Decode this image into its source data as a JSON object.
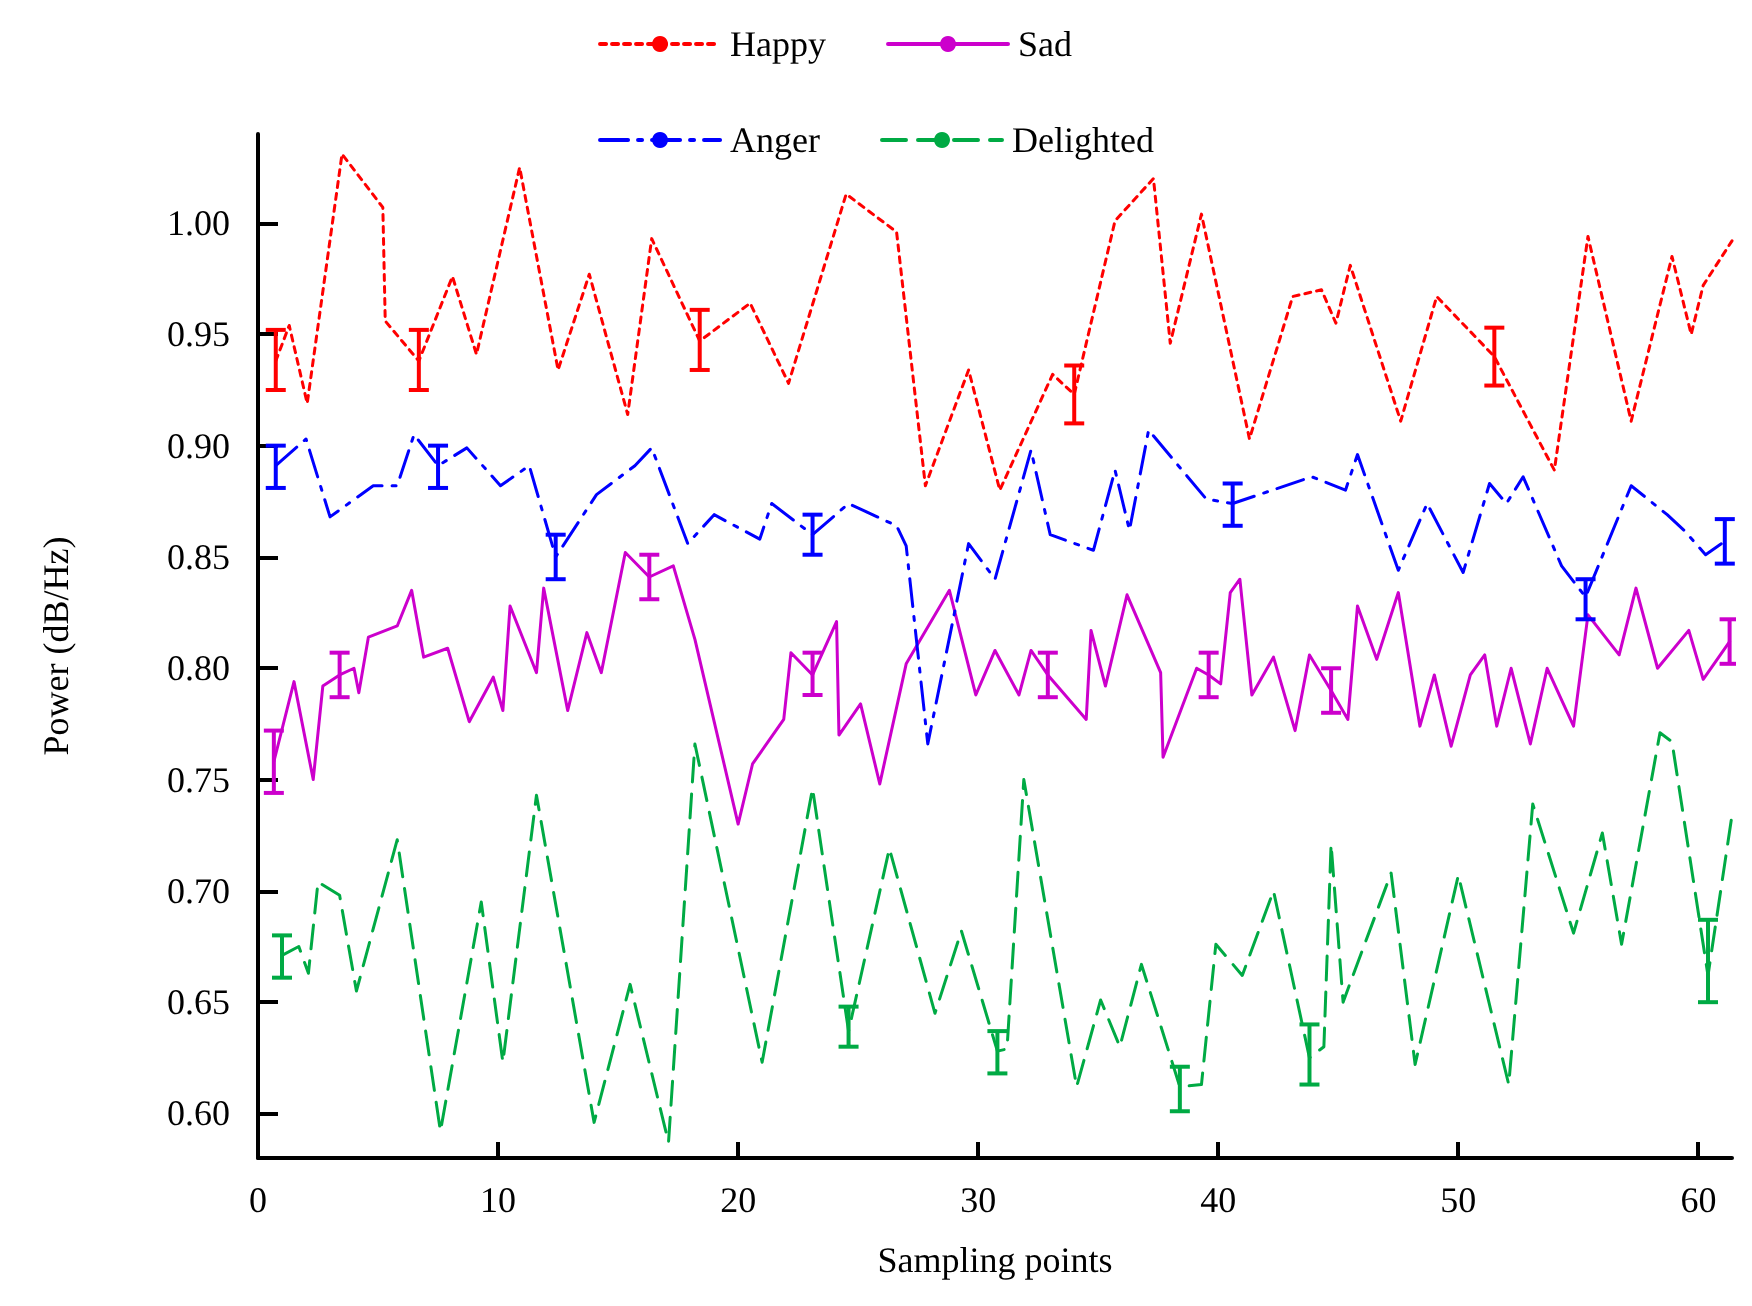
{
  "chart_data": {
    "type": "line",
    "xlabel": "Sampling points",
    "ylabel": "Power (dB/Hz)",
    "xlim": [
      0,
      61.4
    ],
    "xticks": [
      0,
      10,
      20,
      30,
      40,
      50,
      60
    ],
    "ylim": [
      0.58,
      1.04
    ],
    "yticks": [
      {
        "value": 0.6,
        "label": "0.60"
      },
      {
        "value": 0.65,
        "label": "0.65"
      },
      {
        "value": 0.7,
        "label": "0.70"
      },
      {
        "value": 0.75,
        "label": "0.75"
      },
      {
        "value": 0.8,
        "label": "0.80"
      },
      {
        "value": 0.85,
        "label": "0.85"
      },
      {
        "value": 0.9,
        "label": "0.90"
      },
      {
        "value": 0.95,
        "label": "0.95"
      },
      {
        "value": 1.0,
        "label": "1.00"
      }
    ],
    "grid": false,
    "legend": "top",
    "marker": "none",
    "series": [
      {
        "name": "Happy",
        "color": "#ff0000",
        "line_style": "dotted",
        "x": [
          0.74,
          1.3,
          2.05,
          3.5,
          5.2,
          5.3,
          6.7,
          8.1,
          9.1,
          10.9,
          12.5,
          13.8,
          15.4,
          16.4,
          18.4,
          20.5,
          22.1,
          24.5,
          26.6,
          27.8,
          29.6,
          30.9,
          33.1,
          34.0,
          35.7,
          37.3,
          38.0,
          39.3,
          41.3,
          43.1,
          44.3,
          44.9,
          45.5,
          47.6,
          49.1,
          51.5,
          54.0,
          55.4,
          57.2,
          58.9,
          59.7,
          60.2,
          61.4
        ],
        "values": [
          0.938,
          0.954,
          0.919,
          1.031,
          1.007,
          0.956,
          0.938,
          0.976,
          0.941,
          1.025,
          0.934,
          0.977,
          0.914,
          0.993,
          0.947,
          0.964,
          0.928,
          1.013,
          0.996,
          0.882,
          0.934,
          0.88,
          0.932,
          0.923,
          1.001,
          1.02,
          0.946,
          1.004,
          0.903,
          0.967,
          0.97,
          0.955,
          0.981,
          0.911,
          0.967,
          0.94,
          0.889,
          0.994,
          0.911,
          0.985,
          0.95,
          0.972,
          0.992
        ],
        "errors": [
          [
            0.925,
            0.952
          ],
          null,
          null,
          null,
          null,
          null,
          [
            0.925,
            0.952
          ],
          null,
          null,
          null,
          null,
          null,
          null,
          null,
          [
            0.934,
            0.961
          ],
          null,
          null,
          null,
          null,
          null,
          null,
          null,
          null,
          [
            0.91,
            0.936
          ],
          null,
          null,
          null,
          null,
          null,
          null,
          null,
          null,
          null,
          null,
          null,
          [
            0.927,
            0.953
          ],
          null,
          null,
          null,
          null,
          null,
          null,
          null
        ]
      },
      {
        "name": "Sad",
        "color": "#cc00cc",
        "line_style": "solid",
        "x": [
          0.66,
          1.5,
          2.3,
          2.7,
          3.4,
          4.0,
          4.2,
          4.6,
          5.8,
          6.4,
          6.9,
          7.9,
          8.8,
          9.8,
          10.2,
          10.5,
          11.6,
          11.9,
          12.9,
          13.7,
          14.3,
          15.3,
          16.3,
          17.3,
          18.2,
          20.0,
          20.6,
          21.9,
          22.2,
          23.1,
          24.1,
          24.2,
          25.1,
          25.9,
          27.0,
          28.8,
          29.9,
          30.7,
          31.7,
          32.2,
          32.9,
          34.5,
          34.7,
          35.3,
          36.2,
          37.6,
          37.7,
          39.1,
          39.6,
          40.1,
          40.5,
          40.9,
          41.4,
          42.3,
          43.2,
          43.8,
          44.7,
          45.4,
          45.8,
          46.6,
          47.5,
          48.4,
          49.0,
          49.7,
          50.5,
          51.1,
          51.6,
          52.2,
          53.0,
          53.7,
          54.8,
          55.4,
          56.7,
          57.4,
          58.3,
          59.6,
          60.2,
          61.3
        ],
        "values": [
          0.758,
          0.794,
          0.75,
          0.792,
          0.797,
          0.8,
          0.789,
          0.814,
          0.819,
          0.835,
          0.805,
          0.809,
          0.776,
          0.796,
          0.781,
          0.828,
          0.798,
          0.836,
          0.781,
          0.816,
          0.798,
          0.852,
          0.841,
          0.846,
          0.813,
          0.73,
          0.757,
          0.777,
          0.807,
          0.797,
          0.821,
          0.77,
          0.784,
          0.748,
          0.802,
          0.835,
          0.788,
          0.808,
          0.788,
          0.808,
          0.797,
          0.777,
          0.817,
          0.792,
          0.833,
          0.798,
          0.76,
          0.8,
          0.797,
          0.793,
          0.834,
          0.84,
          0.788,
          0.805,
          0.772,
          0.806,
          0.79,
          0.777,
          0.828,
          0.804,
          0.834,
          0.774,
          0.797,
          0.765,
          0.797,
          0.806,
          0.774,
          0.8,
          0.766,
          0.8,
          0.774,
          0.824,
          0.806,
          0.836,
          0.8,
          0.817,
          0.795,
          0.812
        ],
        "errors": [
          [
            0.744,
            0.772
          ],
          null,
          null,
          null,
          [
            0.787,
            0.807
          ],
          null,
          null,
          null,
          null,
          null,
          null,
          null,
          null,
          null,
          null,
          null,
          null,
          null,
          null,
          null,
          null,
          null,
          [
            0.831,
            0.851
          ],
          null,
          null,
          null,
          null,
          null,
          null,
          [
            0.788,
            0.807
          ],
          null,
          null,
          null,
          null,
          null,
          null,
          null,
          null,
          null,
          null,
          [
            0.787,
            0.807
          ],
          null,
          null,
          null,
          null,
          null,
          null,
          null,
          [
            0.787,
            0.807
          ],
          null,
          null,
          null,
          null,
          null,
          null,
          null,
          [
            0.78,
            0.8
          ],
          null,
          null,
          null,
          null,
          null,
          null,
          null,
          null,
          null,
          null,
          null,
          null,
          null,
          null,
          null,
          null,
          null,
          null,
          null,
          null,
          [
            0.802,
            0.822
          ]
        ]
      },
      {
        "name": "Anger",
        "color": "#0000ff",
        "line_style": "dashdot",
        "x": [
          0.74,
          2.0,
          3.0,
          4.8,
          5.8,
          6.5,
          7.5,
          8.7,
          10.1,
          11.3,
          12.4,
          14.1,
          15.7,
          16.4,
          17.9,
          19.0,
          20.9,
          21.4,
          23.1,
          24.6,
          26.6,
          27.0,
          27.9,
          29.6,
          30.7,
          32.2,
          33.0,
          34.8,
          35.7,
          36.3,
          37.1,
          39.5,
          40.6,
          43.9,
          45.3,
          45.8,
          47.5,
          48.7,
          50.2,
          51.3,
          52.0,
          52.7,
          54.3,
          55.3,
          57.2,
          58.7,
          59.4,
          60.3,
          61.1
        ],
        "values": [
          0.891,
          0.903,
          0.868,
          0.882,
          0.882,
          0.905,
          0.891,
          0.899,
          0.882,
          0.891,
          0.85,
          0.878,
          0.891,
          0.899,
          0.856,
          0.869,
          0.858,
          0.874,
          0.86,
          0.874,
          0.864,
          0.855,
          0.766,
          0.856,
          0.84,
          0.898,
          0.86,
          0.853,
          0.889,
          0.862,
          0.907,
          0.876,
          0.874,
          0.886,
          0.88,
          0.896,
          0.844,
          0.874,
          0.843,
          0.883,
          0.874,
          0.886,
          0.846,
          0.832,
          0.882,
          0.869,
          0.862,
          0.851,
          0.857
        ],
        "errors": [
          [
            0.881,
            0.9
          ],
          null,
          null,
          null,
          null,
          null,
          [
            0.881,
            0.9
          ],
          null,
          null,
          null,
          [
            0.84,
            0.86
          ],
          null,
          null,
          null,
          null,
          null,
          null,
          null,
          [
            0.851,
            0.869
          ],
          null,
          null,
          null,
          null,
          null,
          null,
          null,
          null,
          null,
          null,
          null,
          null,
          null,
          [
            0.864,
            0.883
          ],
          null,
          null,
          null,
          null,
          null,
          null,
          null,
          null,
          null,
          null,
          [
            0.822,
            0.84
          ],
          null,
          null,
          null,
          null,
          [
            0.847,
            0.867
          ]
        ]
      },
      {
        "name": "Delighted",
        "color": "#00aa44",
        "line_style": "dashed",
        "x": [
          1.0,
          1.7,
          2.1,
          2.5,
          3.4,
          4.1,
          5.8,
          7.6,
          9.3,
          10.2,
          11.6,
          14.0,
          15.5,
          17.1,
          18.2,
          21.0,
          23.1,
          24.6,
          26.3,
          28.2,
          29.3,
          30.8,
          31.2,
          31.9,
          34.1,
          35.1,
          35.9,
          36.8,
          38.4,
          39.3,
          39.9,
          41.0,
          42.3,
          43.8,
          44.4,
          44.7,
          45.2,
          47.2,
          48.2,
          50.0,
          52.1,
          53.1,
          54.8,
          56.0,
          56.8,
          58.4,
          58.9,
          60.4,
          61.4
        ],
        "values": [
          0.671,
          0.675,
          0.663,
          0.704,
          0.698,
          0.655,
          0.723,
          0.592,
          0.695,
          0.623,
          0.743,
          0.596,
          0.658,
          0.587,
          0.766,
          0.623,
          0.746,
          0.637,
          0.719,
          0.645,
          0.682,
          0.628,
          0.629,
          0.75,
          0.612,
          0.651,
          0.63,
          0.667,
          0.612,
          0.613,
          0.676,
          0.662,
          0.7,
          0.625,
          0.63,
          0.721,
          0.65,
          0.708,
          0.622,
          0.707,
          0.613,
          0.739,
          0.681,
          0.726,
          0.676,
          0.771,
          0.767,
          0.662,
          0.734
        ],
        "errors": [
          [
            0.661,
            0.68
          ],
          null,
          null,
          null,
          null,
          null,
          null,
          null,
          null,
          null,
          null,
          null,
          null,
          null,
          null,
          null,
          null,
          [
            0.63,
            0.648
          ],
          null,
          null,
          null,
          [
            0.618,
            0.637
          ],
          null,
          null,
          null,
          null,
          null,
          null,
          [
            0.601,
            0.621
          ],
          null,
          null,
          null,
          null,
          [
            0.613,
            0.64
          ],
          null,
          null,
          null,
          null,
          null,
          null,
          null,
          null,
          null,
          null,
          null,
          null,
          null,
          [
            0.65,
            0.687
          ],
          null
        ]
      }
    ]
  }
}
